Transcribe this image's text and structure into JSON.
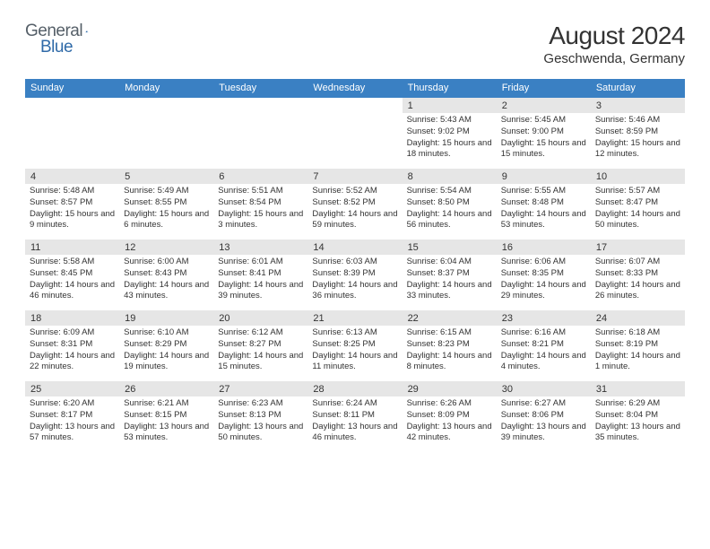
{
  "brand": {
    "text1": "General",
    "text2": "Blue"
  },
  "title": "August 2024",
  "location": "Geschwenda, Germany",
  "colors": {
    "header_bg": "#3a80c3",
    "accent": "#2f6aa8",
    "dayrow_bg": "#e6e6e6",
    "text": "#333333"
  },
  "fonts": {
    "title_size": 28,
    "location_size": 15,
    "header_size": 11,
    "daynum_size": 11,
    "detail_size": 9.5
  },
  "weekdays": [
    "Sunday",
    "Monday",
    "Tuesday",
    "Wednesday",
    "Thursday",
    "Friday",
    "Saturday"
  ],
  "weeks": [
    {
      "days": [
        {
          "num": "",
          "sunrise": "",
          "sunset": "",
          "daylight": ""
        },
        {
          "num": "",
          "sunrise": "",
          "sunset": "",
          "daylight": ""
        },
        {
          "num": "",
          "sunrise": "",
          "sunset": "",
          "daylight": ""
        },
        {
          "num": "",
          "sunrise": "",
          "sunset": "",
          "daylight": ""
        },
        {
          "num": "1",
          "sunrise": "Sunrise: 5:43 AM",
          "sunset": "Sunset: 9:02 PM",
          "daylight": "Daylight: 15 hours and 18 minutes."
        },
        {
          "num": "2",
          "sunrise": "Sunrise: 5:45 AM",
          "sunset": "Sunset: 9:00 PM",
          "daylight": "Daylight: 15 hours and 15 minutes."
        },
        {
          "num": "3",
          "sunrise": "Sunrise: 5:46 AM",
          "sunset": "Sunset: 8:59 PM",
          "daylight": "Daylight: 15 hours and 12 minutes."
        }
      ]
    },
    {
      "days": [
        {
          "num": "4",
          "sunrise": "Sunrise: 5:48 AM",
          "sunset": "Sunset: 8:57 PM",
          "daylight": "Daylight: 15 hours and 9 minutes."
        },
        {
          "num": "5",
          "sunrise": "Sunrise: 5:49 AM",
          "sunset": "Sunset: 8:55 PM",
          "daylight": "Daylight: 15 hours and 6 minutes."
        },
        {
          "num": "6",
          "sunrise": "Sunrise: 5:51 AM",
          "sunset": "Sunset: 8:54 PM",
          "daylight": "Daylight: 15 hours and 3 minutes."
        },
        {
          "num": "7",
          "sunrise": "Sunrise: 5:52 AM",
          "sunset": "Sunset: 8:52 PM",
          "daylight": "Daylight: 14 hours and 59 minutes."
        },
        {
          "num": "8",
          "sunrise": "Sunrise: 5:54 AM",
          "sunset": "Sunset: 8:50 PM",
          "daylight": "Daylight: 14 hours and 56 minutes."
        },
        {
          "num": "9",
          "sunrise": "Sunrise: 5:55 AM",
          "sunset": "Sunset: 8:48 PM",
          "daylight": "Daylight: 14 hours and 53 minutes."
        },
        {
          "num": "10",
          "sunrise": "Sunrise: 5:57 AM",
          "sunset": "Sunset: 8:47 PM",
          "daylight": "Daylight: 14 hours and 50 minutes."
        }
      ]
    },
    {
      "days": [
        {
          "num": "11",
          "sunrise": "Sunrise: 5:58 AM",
          "sunset": "Sunset: 8:45 PM",
          "daylight": "Daylight: 14 hours and 46 minutes."
        },
        {
          "num": "12",
          "sunrise": "Sunrise: 6:00 AM",
          "sunset": "Sunset: 8:43 PM",
          "daylight": "Daylight: 14 hours and 43 minutes."
        },
        {
          "num": "13",
          "sunrise": "Sunrise: 6:01 AM",
          "sunset": "Sunset: 8:41 PM",
          "daylight": "Daylight: 14 hours and 39 minutes."
        },
        {
          "num": "14",
          "sunrise": "Sunrise: 6:03 AM",
          "sunset": "Sunset: 8:39 PM",
          "daylight": "Daylight: 14 hours and 36 minutes."
        },
        {
          "num": "15",
          "sunrise": "Sunrise: 6:04 AM",
          "sunset": "Sunset: 8:37 PM",
          "daylight": "Daylight: 14 hours and 33 minutes."
        },
        {
          "num": "16",
          "sunrise": "Sunrise: 6:06 AM",
          "sunset": "Sunset: 8:35 PM",
          "daylight": "Daylight: 14 hours and 29 minutes."
        },
        {
          "num": "17",
          "sunrise": "Sunrise: 6:07 AM",
          "sunset": "Sunset: 8:33 PM",
          "daylight": "Daylight: 14 hours and 26 minutes."
        }
      ]
    },
    {
      "days": [
        {
          "num": "18",
          "sunrise": "Sunrise: 6:09 AM",
          "sunset": "Sunset: 8:31 PM",
          "daylight": "Daylight: 14 hours and 22 minutes."
        },
        {
          "num": "19",
          "sunrise": "Sunrise: 6:10 AM",
          "sunset": "Sunset: 8:29 PM",
          "daylight": "Daylight: 14 hours and 19 minutes."
        },
        {
          "num": "20",
          "sunrise": "Sunrise: 6:12 AM",
          "sunset": "Sunset: 8:27 PM",
          "daylight": "Daylight: 14 hours and 15 minutes."
        },
        {
          "num": "21",
          "sunrise": "Sunrise: 6:13 AM",
          "sunset": "Sunset: 8:25 PM",
          "daylight": "Daylight: 14 hours and 11 minutes."
        },
        {
          "num": "22",
          "sunrise": "Sunrise: 6:15 AM",
          "sunset": "Sunset: 8:23 PM",
          "daylight": "Daylight: 14 hours and 8 minutes."
        },
        {
          "num": "23",
          "sunrise": "Sunrise: 6:16 AM",
          "sunset": "Sunset: 8:21 PM",
          "daylight": "Daylight: 14 hours and 4 minutes."
        },
        {
          "num": "24",
          "sunrise": "Sunrise: 6:18 AM",
          "sunset": "Sunset: 8:19 PM",
          "daylight": "Daylight: 14 hours and 1 minute."
        }
      ]
    },
    {
      "days": [
        {
          "num": "25",
          "sunrise": "Sunrise: 6:20 AM",
          "sunset": "Sunset: 8:17 PM",
          "daylight": "Daylight: 13 hours and 57 minutes."
        },
        {
          "num": "26",
          "sunrise": "Sunrise: 6:21 AM",
          "sunset": "Sunset: 8:15 PM",
          "daylight": "Daylight: 13 hours and 53 minutes."
        },
        {
          "num": "27",
          "sunrise": "Sunrise: 6:23 AM",
          "sunset": "Sunset: 8:13 PM",
          "daylight": "Daylight: 13 hours and 50 minutes."
        },
        {
          "num": "28",
          "sunrise": "Sunrise: 6:24 AM",
          "sunset": "Sunset: 8:11 PM",
          "daylight": "Daylight: 13 hours and 46 minutes."
        },
        {
          "num": "29",
          "sunrise": "Sunrise: 6:26 AM",
          "sunset": "Sunset: 8:09 PM",
          "daylight": "Daylight: 13 hours and 42 minutes."
        },
        {
          "num": "30",
          "sunrise": "Sunrise: 6:27 AM",
          "sunset": "Sunset: 8:06 PM",
          "daylight": "Daylight: 13 hours and 39 minutes."
        },
        {
          "num": "31",
          "sunrise": "Sunrise: 6:29 AM",
          "sunset": "Sunset: 8:04 PM",
          "daylight": "Daylight: 13 hours and 35 minutes."
        }
      ]
    }
  ]
}
